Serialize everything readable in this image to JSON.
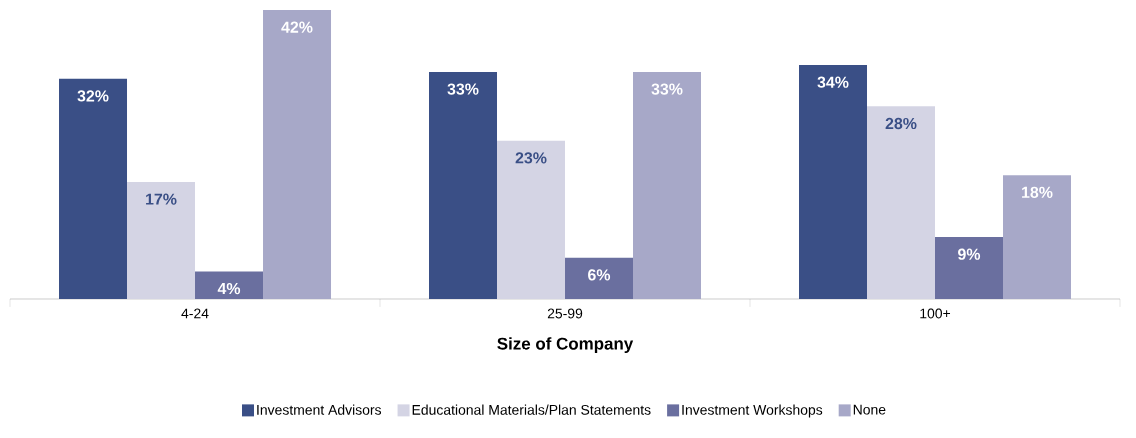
{
  "chart_data": {
    "type": "bar",
    "xlabel": "Size of Company",
    "categories": [
      "4-24",
      "25-99",
      "100+"
    ],
    "series": [
      {
        "name": "Investment Advisors",
        "color": "#3a4f86",
        "values": [
          32,
          33,
          34
        ],
        "value_labels": [
          "32%",
          "33%",
          "34%"
        ]
      },
      {
        "name": "Educational Materials/Plan Statements",
        "color": "#d4d4e4",
        "values": [
          17,
          23,
          28
        ],
        "value_labels": [
          "17%",
          "23%",
          "28%"
        ]
      },
      {
        "name": "Investment Workshops",
        "color": "#6a6f9f",
        "values": [
          4,
          6,
          9
        ],
        "value_labels": [
          "4%",
          "6%",
          "9%"
        ]
      },
      {
        "name": "None",
        "color": "#a7a8c8",
        "values": [
          42,
          33,
          18
        ],
        "value_labels": [
          "42%",
          "33%",
          "18%"
        ]
      }
    ],
    "legend": "bottom"
  }
}
